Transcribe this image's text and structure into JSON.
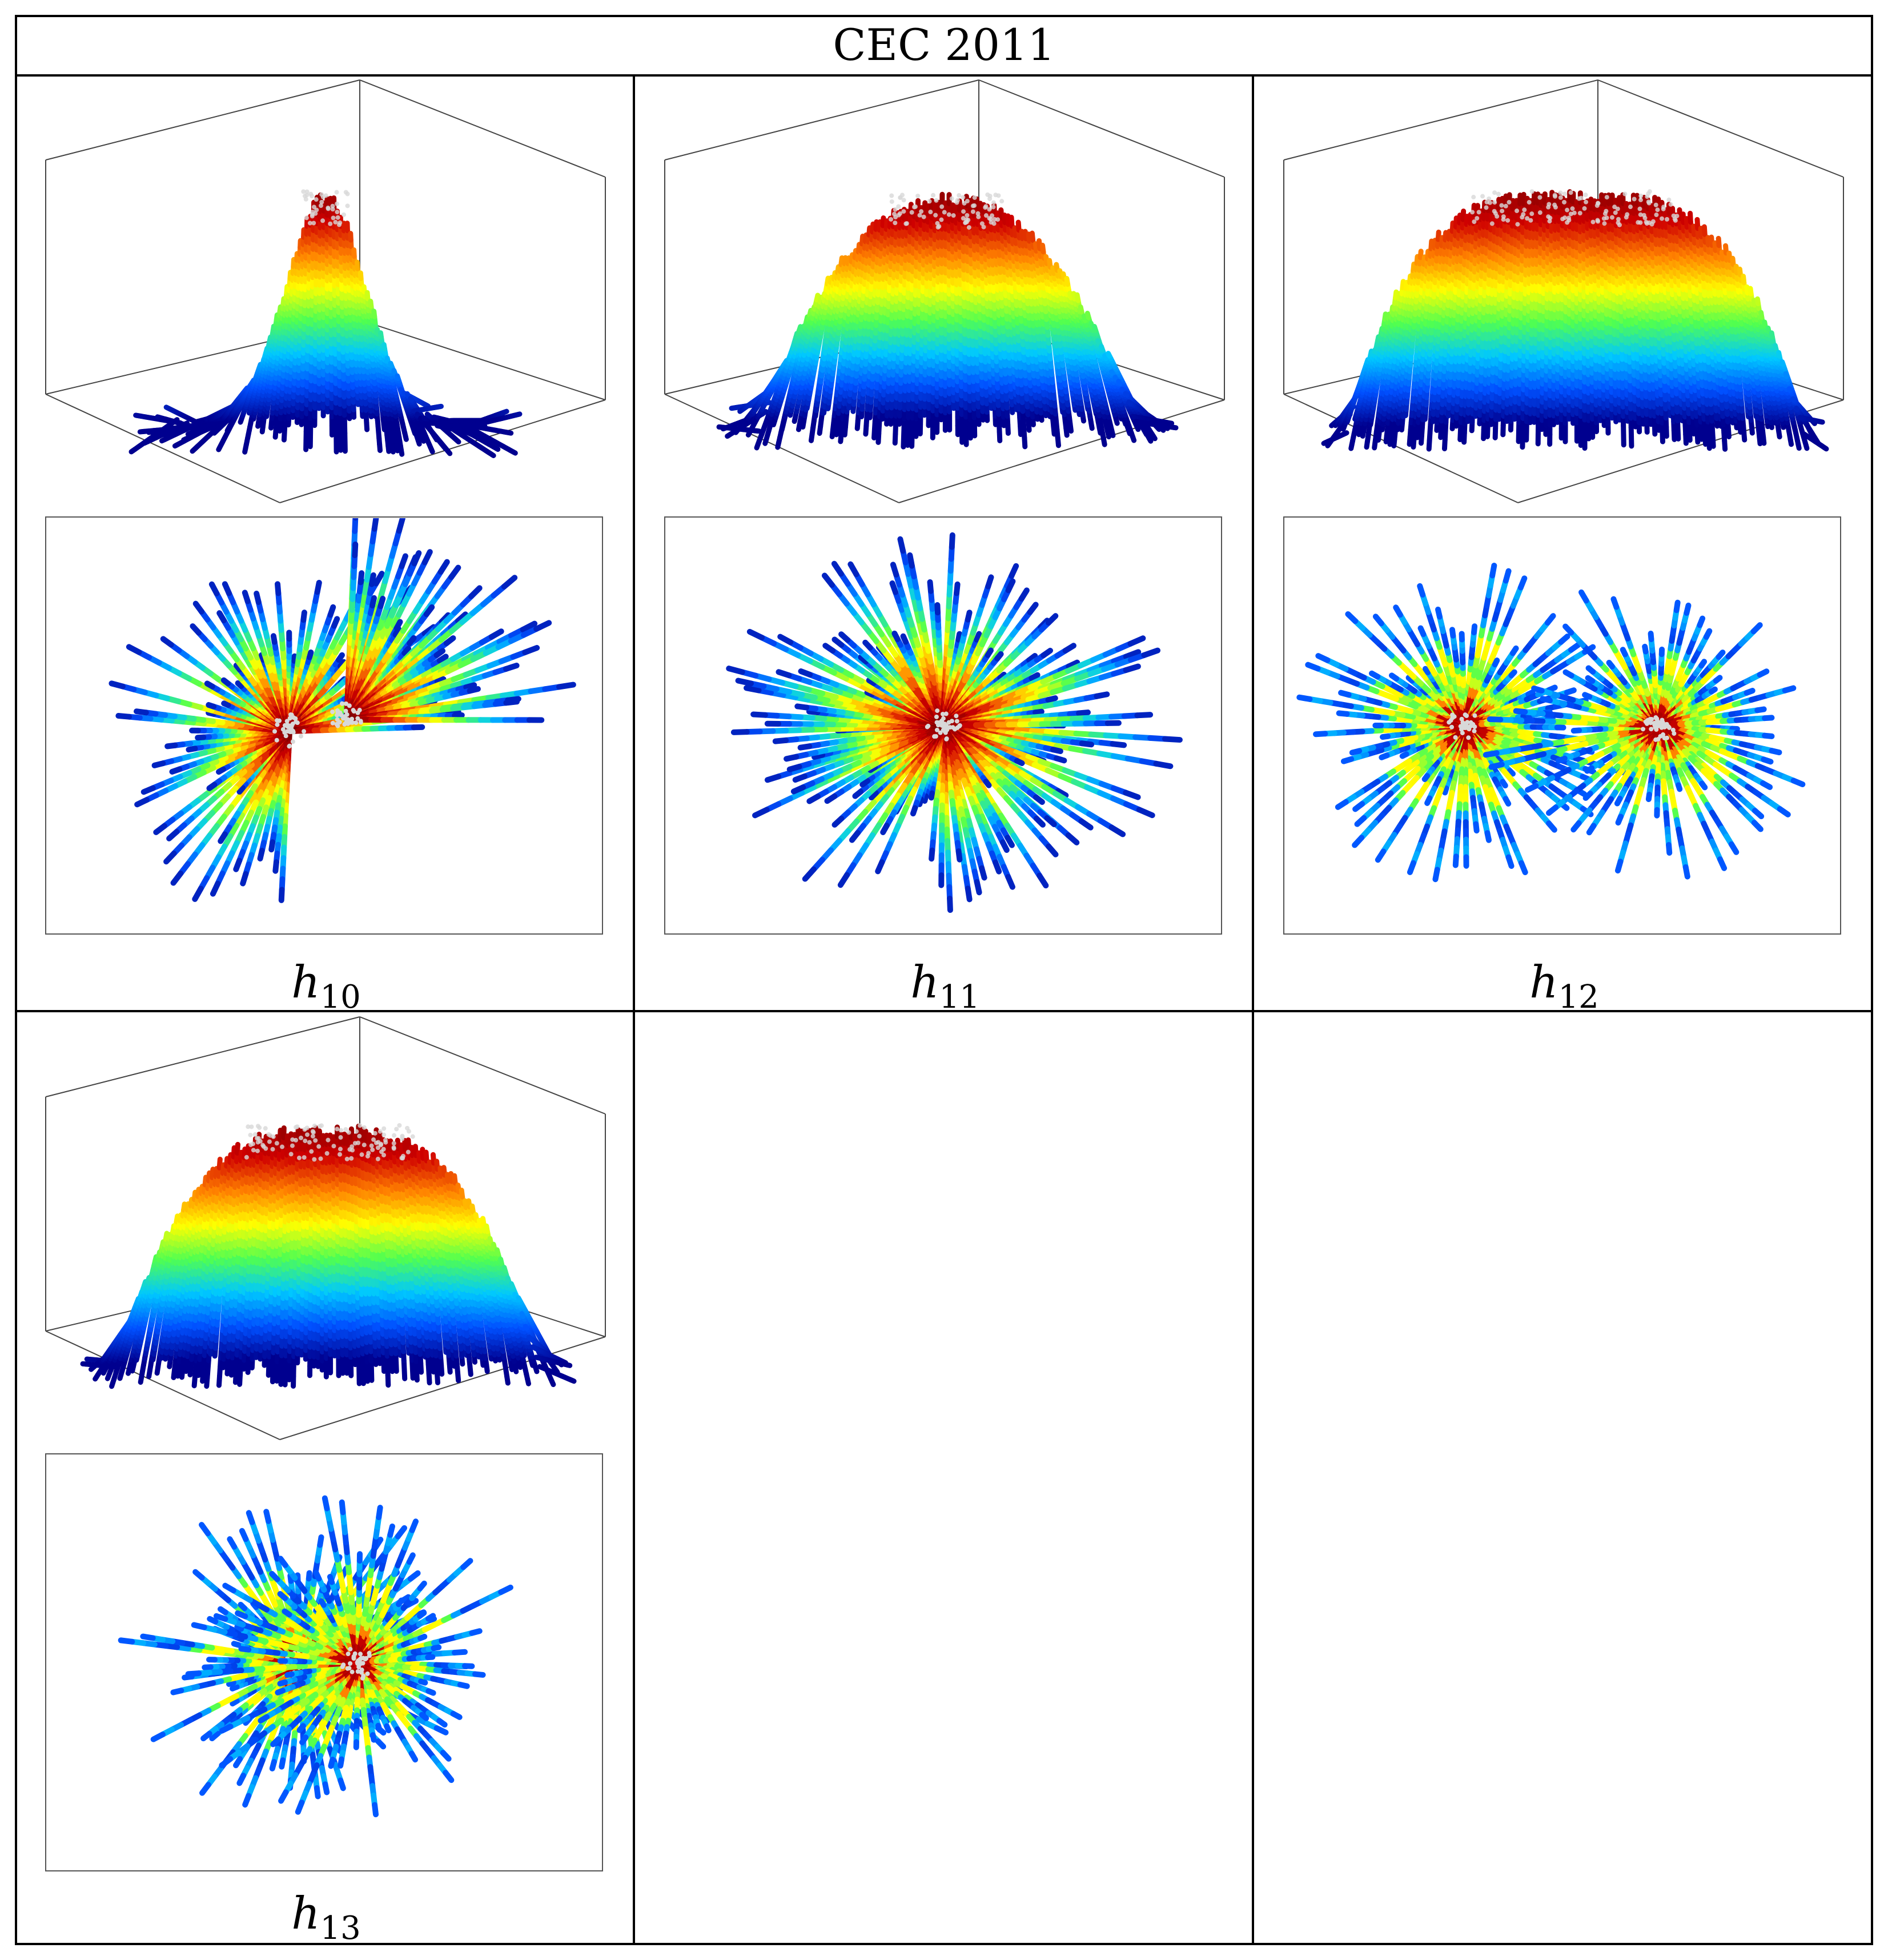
{
  "figure": {
    "title": "CEC 2011",
    "panels": [
      {
        "id": "h10",
        "label_main": "h",
        "label_sub": "10",
        "shape": "peak"
      },
      {
        "id": "h11",
        "label_main": "h",
        "label_sub": "11",
        "shape": "mesa"
      },
      {
        "id": "h12",
        "label_main": "h",
        "label_sub": "12",
        "shape": "bilobe"
      },
      {
        "id": "h13",
        "label_main": "h",
        "label_sub": "13",
        "shape": "mesa-wide"
      }
    ],
    "colormap": [
      "#00008f",
      "#0050ff",
      "#00c8ff",
      "#50ff50",
      "#ffff00",
      "#ff8000",
      "#d00000",
      "#800000"
    ],
    "highlight_color": "#d8d8d8"
  }
}
